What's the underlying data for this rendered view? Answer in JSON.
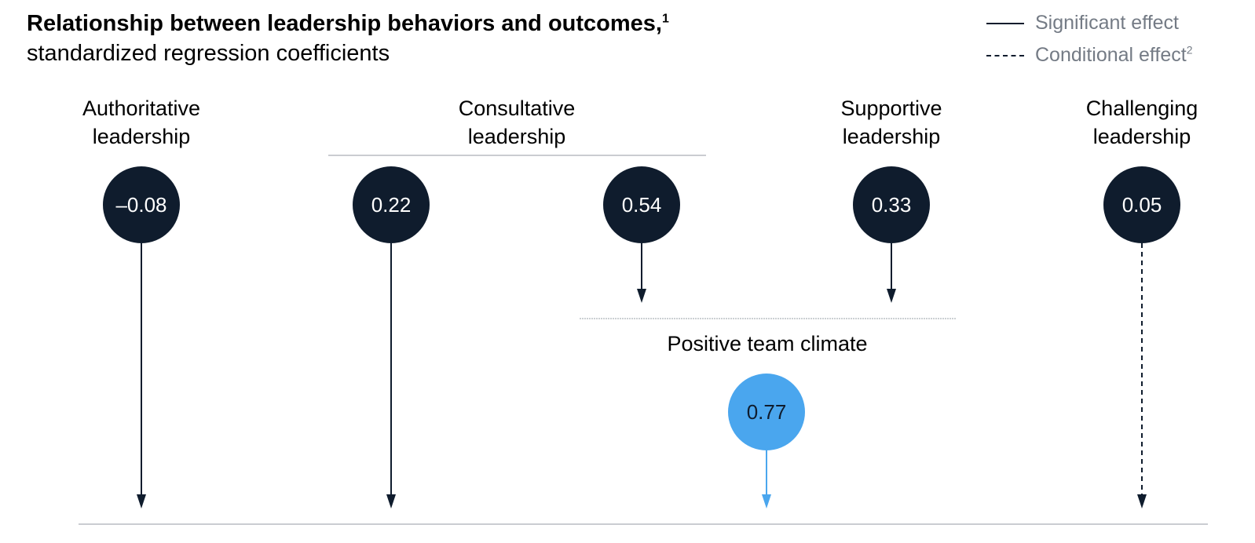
{
  "header": {
    "title": "Relationship between leadership behaviors and outcomes,",
    "title_footnote": "1",
    "subtitle": "standardized regression coefficients"
  },
  "legend": {
    "significant": "Significant effect",
    "conditional": "Conditional effect",
    "conditional_footnote": "2"
  },
  "categories": {
    "authoritative": {
      "line1": "Authoritative",
      "line2": "leadership"
    },
    "consultative": {
      "line1": "Consultative",
      "line2": "leadership"
    },
    "supportive": {
      "line1": "Supportive",
      "line2": "leadership"
    },
    "challenging": {
      "line1": "Challenging",
      "line2": "leadership"
    }
  },
  "coefficients": {
    "authoritative": "–0.08",
    "consultative_outcome": "0.22",
    "consultative_climate": "0.54",
    "supportive": "0.33",
    "challenging": "0.05",
    "team_climate": "0.77"
  },
  "mediator": {
    "label": "Positive team climate"
  },
  "colors": {
    "node_dark": "#0f1c2d",
    "node_accent": "#4aa6ee",
    "legend_text": "#747b85",
    "rule": "#b8bcc2"
  }
}
